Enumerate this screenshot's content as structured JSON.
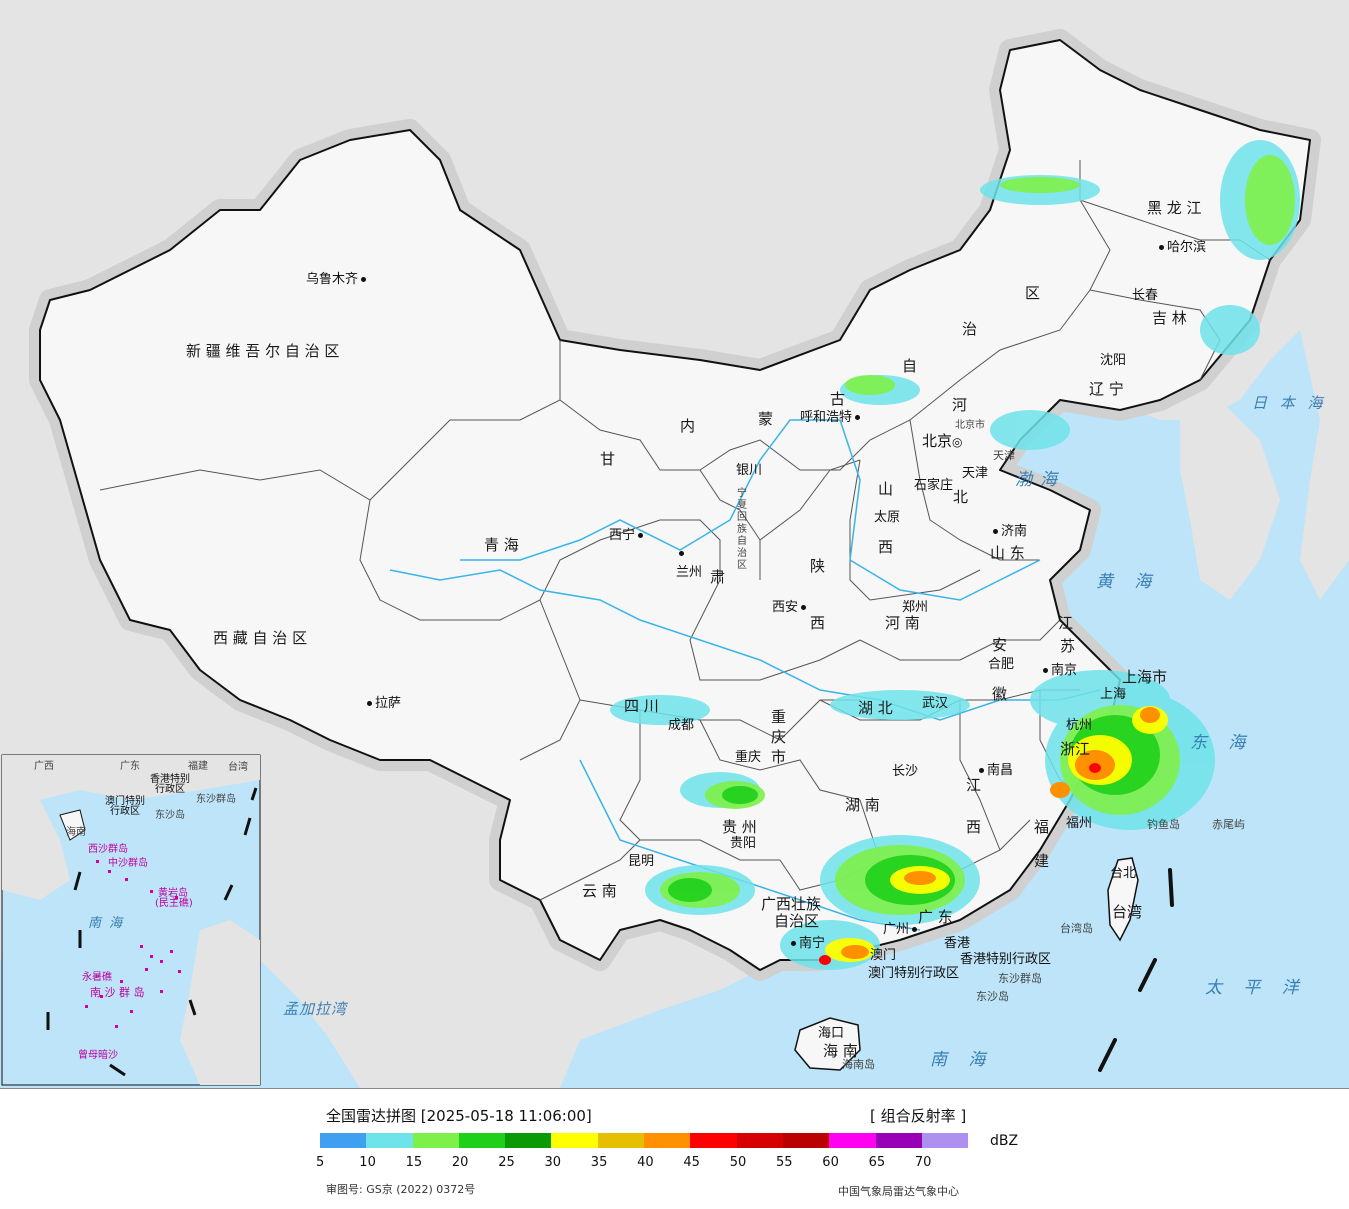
{
  "map": {
    "provinces": [
      {
        "id": "xinjiang",
        "text": "新 疆 维 吾 尔 自 治 区"
      },
      {
        "id": "xizang",
        "text": "西 藏 自 治 区"
      },
      {
        "id": "qinghai",
        "text": "青        海"
      },
      {
        "id": "gansu",
        "text": "甘"
      },
      {
        "id": "neimeng1",
        "text": "内"
      },
      {
        "id": "neimeng2",
        "text": "蒙"
      },
      {
        "id": "neimeng3",
        "text": "古"
      },
      {
        "id": "neimeng4",
        "text": "自"
      },
      {
        "id": "neimeng5",
        "text": "治"
      },
      {
        "id": "neimeng6",
        "text": "区"
      },
      {
        "id": "heilongjiang",
        "text": "黑  龙  江"
      },
      {
        "id": "jilin",
        "text": "吉  林"
      },
      {
        "id": "liaoning",
        "text": "辽  宁"
      },
      {
        "id": "hebei",
        "text": "河"
      },
      {
        "id": "hebei2",
        "text": "北"
      },
      {
        "id": "shanxi",
        "text": "山"
      },
      {
        "id": "shanxi2",
        "text": "西"
      },
      {
        "id": "shandong",
        "text": "山  东"
      },
      {
        "id": "henan",
        "text": "河      南"
      },
      {
        "id": "shaanxi",
        "text": "陕"
      },
      {
        "id": "shaanxi2",
        "text": "西"
      },
      {
        "id": "ningxia",
        "text": "宁夏回族自治区"
      },
      {
        "id": "gansu2",
        "text": "肃"
      },
      {
        "id": "sichuan",
        "text": "四      川"
      },
      {
        "id": "chongqing",
        "text": "重庆市"
      },
      {
        "id": "hubei",
        "text": "湖    北"
      },
      {
        "id": "hunan",
        "text": "湖    南"
      },
      {
        "id": "jiangxi",
        "text": "江"
      },
      {
        "id": "jiangxi2",
        "text": "西"
      },
      {
        "id": "anhui",
        "text": "安"
      },
      {
        "id": "anhui2",
        "text": "徽"
      },
      {
        "id": "jiangsu",
        "text": "江"
      },
      {
        "id": "jiangsu2",
        "text": "苏"
      },
      {
        "id": "shanghai",
        "text": "上海市"
      },
      {
        "id": "zhejiang",
        "text": "浙江"
      },
      {
        "id": "fujian",
        "text": "福"
      },
      {
        "id": "fujian2",
        "text": "建"
      },
      {
        "id": "guizhou",
        "text": "贵    州"
      },
      {
        "id": "yunnan",
        "text": "云    南"
      },
      {
        "id": "guangxi",
        "text": "广西壮族"
      },
      {
        "id": "guangxi2",
        "text": "自治区"
      },
      {
        "id": "guangdong",
        "text": "广    东"
      },
      {
        "id": "hainan",
        "text": "海  南"
      },
      {
        "id": "taiwan",
        "text": "台湾"
      },
      {
        "id": "hk",
        "text": "香港特别行政区"
      },
      {
        "id": "macau",
        "text": "澳门特别行政区"
      },
      {
        "id": "tianjin",
        "text": "天津"
      },
      {
        "id": "beijing_m",
        "text": "北京市"
      }
    ],
    "cities": [
      {
        "id": "urumqi",
        "text": "乌鲁木齐"
      },
      {
        "id": "lhasa",
        "text": "拉萨"
      },
      {
        "id": "xining",
        "text": "西宁"
      },
      {
        "id": "lanzhou",
        "text": "兰州"
      },
      {
        "id": "yinchuan",
        "text": "银川"
      },
      {
        "id": "huhehaote",
        "text": "呼和浩特"
      },
      {
        "id": "beijing",
        "text": "北京"
      },
      {
        "id": "tianjin_c",
        "text": "天津"
      },
      {
        "id": "shijiazhuang",
        "text": "石家庄"
      },
      {
        "id": "taiyuan",
        "text": "太原"
      },
      {
        "id": "jinan",
        "text": "济南"
      },
      {
        "id": "zhengzhou",
        "text": "郑州"
      },
      {
        "id": "xian",
        "text": "西安"
      },
      {
        "id": "chengdu",
        "text": "成都"
      },
      {
        "id": "chongqing_c",
        "text": "重庆"
      },
      {
        "id": "wuhan",
        "text": "武汉"
      },
      {
        "id": "changsha",
        "text": "长沙"
      },
      {
        "id": "nanchang",
        "text": "南昌"
      },
      {
        "id": "hefei",
        "text": "合肥"
      },
      {
        "id": "nanjing",
        "text": "南京"
      },
      {
        "id": "shanghai_c",
        "text": "上海"
      },
      {
        "id": "hangzhou",
        "text": "杭州"
      },
      {
        "id": "fuzhou",
        "text": "福州"
      },
      {
        "id": "guiyang",
        "text": "贵阳"
      },
      {
        "id": "kunming",
        "text": "昆明"
      },
      {
        "id": "nanning",
        "text": "南宁"
      },
      {
        "id": "guangzhou",
        "text": "广州"
      },
      {
        "id": "hongkong",
        "text": "香港"
      },
      {
        "id": "macau_c",
        "text": "澳门"
      },
      {
        "id": "haikou",
        "text": "海口"
      },
      {
        "id": "taibei",
        "text": "台北"
      },
      {
        "id": "harbin",
        "text": "哈尔滨"
      },
      {
        "id": "changchun",
        "text": "长春"
      },
      {
        "id": "shenyang",
        "text": "沈阳"
      }
    ],
    "seas": [
      {
        "id": "bohai",
        "text": "渤海"
      },
      {
        "id": "huanghai",
        "text": "黄  海"
      },
      {
        "id": "donghai",
        "text": "东 海"
      },
      {
        "id": "nanhai",
        "text": "南    海"
      },
      {
        "id": "taipingyang",
        "text": "太  平  洋"
      },
      {
        "id": "ribenhai",
        "text": "日 本 海"
      },
      {
        "id": "mengjialawan",
        "text": "孟加拉湾"
      }
    ],
    "islands": [
      {
        "id": "diaoyudao",
        "text": "钓鱼岛"
      },
      {
        "id": "chiweiyu",
        "text": "赤尾屿"
      },
      {
        "id": "taiwandao",
        "text": "台湾岛"
      },
      {
        "id": "dongsha",
        "text": "东沙群岛"
      },
      {
        "id": "dongshadao",
        "text": "东沙岛"
      },
      {
        "id": "hainandao",
        "text": "海南岛"
      }
    ],
    "inset": {
      "labels": [
        {
          "id": "i_gx",
          "text": "广西"
        },
        {
          "id": "i_gd",
          "text": "广东"
        },
        {
          "id": "i_fj",
          "text": "福建"
        },
        {
          "id": "i_tw",
          "text": "台湾"
        },
        {
          "id": "i_hk",
          "text": "香港特别"
        },
        {
          "id": "i_hk2",
          "text": "行政区"
        },
        {
          "id": "i_mo",
          "text": "澳门特别"
        },
        {
          "id": "i_mo2",
          "text": "行政区"
        },
        {
          "id": "i_ds",
          "text": "东沙群岛"
        },
        {
          "id": "i_ds2",
          "text": "东沙岛"
        },
        {
          "id": "i_hn",
          "text": "海南"
        },
        {
          "id": "i_xs",
          "text": "西沙群岛"
        },
        {
          "id": "i_zs",
          "text": "中沙群岛"
        },
        {
          "id": "i_hy",
          "text": "黄岩岛"
        },
        {
          "id": "i_mh",
          "text": "(民主礁)"
        },
        {
          "id": "i_nh",
          "text": "南    海"
        },
        {
          "id": "i_ns",
          "text": "南 沙 群 岛"
        },
        {
          "id": "i_yx",
          "text": "永暑礁"
        },
        {
          "id": "i_zm",
          "text": "曾母暗沙"
        }
      ]
    }
  },
  "legend": {
    "title": "全国雷达拼图 [2025-05-18 11:06:00]",
    "product": "[ 组合反射率 ]",
    "unit": "dBZ",
    "colors": [
      "#3f9ff0",
      "#6ee3ea",
      "#7ef04a",
      "#1fd01a",
      "#0b9a06",
      "#ffff00",
      "#e6c000",
      "#ff9000",
      "#ff0000",
      "#d60000",
      "#bb0000",
      "#ff00f0",
      "#9700b4",
      "#ad90f0"
    ],
    "ticks": [
      "5",
      "10",
      "15",
      "20",
      "25",
      "30",
      "35",
      "40",
      "45",
      "50",
      "55",
      "60",
      "65",
      "70"
    ],
    "approval": "审图号: GS京 (2022) 0372号",
    "org": "中国气象局雷达气象中心"
  }
}
